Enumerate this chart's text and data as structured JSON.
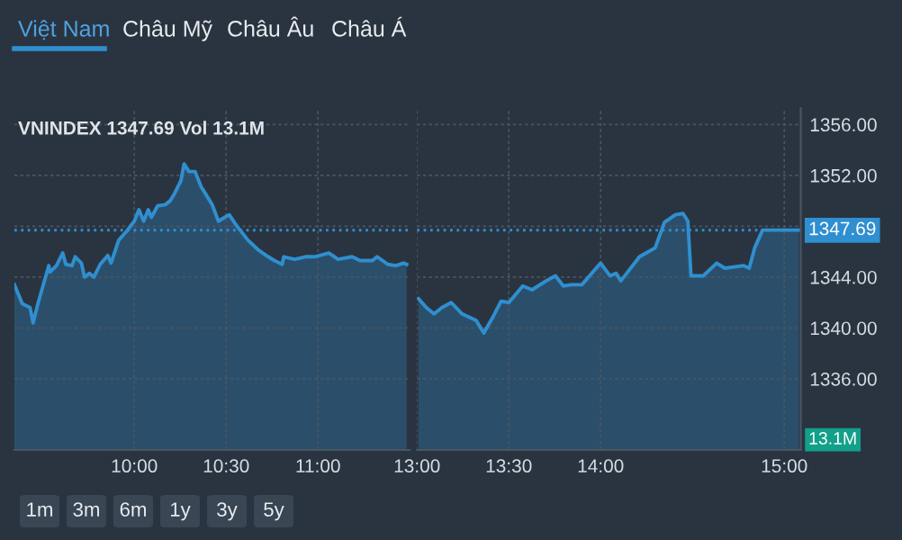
{
  "chart_data": [
    {
      "type": "area",
      "title": "VNINDEX 1347.69 Vol 13.1M",
      "x": [
        9.347,
        9.39,
        9.432,
        9.449,
        9.475,
        9.534,
        9.542,
        9.576,
        9.61,
        9.627,
        9.661,
        9.678,
        9.712,
        9.729,
        9.754,
        9.78,
        9.814,
        9.856,
        9.873,
        9.915,
        9.958,
        10.0,
        10.025,
        10.051,
        10.076,
        10.093,
        10.127,
        10.169,
        10.195,
        10.22,
        10.254,
        10.271,
        10.297,
        10.331,
        10.364,
        10.424,
        10.458,
        10.492,
        10.517,
        10.559,
        10.619,
        10.678,
        10.729,
        10.763,
        10.805,
        10.814,
        10.873,
        10.932,
        10.983,
        11.059,
        11.11,
        11.186,
        11.229,
        11.297,
        11.322,
        11.381,
        11.424,
        11.466,
        11.483
      ],
      "series": [
        {
          "color": "#2f8fd0",
          "values": [
            1343.4,
            1341.9,
            1341.6,
            1340.4,
            1341.9,
            1344.9,
            1344.4,
            1344.9,
            1345.9,
            1345.0,
            1344.9,
            1345.6,
            1345.1,
            1344.0,
            1344.3,
            1344.0,
            1345.0,
            1345.7,
            1345.1,
            1346.9,
            1347.6,
            1348.4,
            1349.3,
            1348.4,
            1349.3,
            1348.7,
            1349.6,
            1349.7,
            1350.0,
            1350.6,
            1351.6,
            1352.9,
            1352.3,
            1352.3,
            1351.1,
            1349.7,
            1348.4,
            1348.7,
            1348.9,
            1348.0,
            1346.9,
            1346.1,
            1345.6,
            1345.3,
            1345.0,
            1345.6,
            1345.4,
            1345.6,
            1345.6,
            1345.9,
            1345.4,
            1345.6,
            1345.3,
            1345.3,
            1345.6,
            1345.0,
            1344.9,
            1345.1,
            1345.0
          ]
        }
      ],
      "xlim": [
        9.347,
        11.5
      ],
      "xticks": [
        {
          "value": 10.0,
          "label": "10:00"
        },
        {
          "value": 10.5,
          "label": "10:30"
        },
        {
          "value": 11.0,
          "label": "11:00"
        }
      ],
      "ylim": [
        1330.4,
        1357.3
      ],
      "yticks": [
        1336,
        1340,
        1344,
        1348,
        1352,
        1356
      ],
      "tick_labels": "x",
      "ref_lines": [
        {
          "axis": "y",
          "value": 1347.69,
          "color": "#2f8fd0",
          "line_style": "dotted"
        }
      ],
      "grid": true,
      "annotations": [
        "Việt Nam",
        "Châu Mỹ",
        "Châu Âu",
        "Châu Á",
        "1m",
        "3m",
        "6m",
        "1y",
        "3y",
        "5y"
      ]
    },
    {
      "type": "area",
      "x": [
        13.008,
        13.051,
        13.093,
        13.136,
        13.186,
        13.246,
        13.322,
        13.364,
        13.415,
        13.458,
        13.5,
        13.576,
        13.627,
        13.703,
        13.754,
        13.797,
        13.839,
        13.898,
        14.0,
        14.051,
        14.085,
        14.11,
        14.212,
        14.297,
        14.347,
        14.407,
        14.449,
        14.475,
        14.492,
        14.559,
        14.632,
        14.677,
        14.78,
        14.809,
        14.839,
        14.882,
        15.08
      ],
      "series": [
        {
          "color": "#2f8fd0",
          "values": [
            1342.3,
            1341.6,
            1341.1,
            1341.6,
            1342.0,
            1341.1,
            1340.6,
            1339.6,
            1340.9,
            1342.1,
            1342.0,
            1343.3,
            1343.0,
            1343.7,
            1344.1,
            1343.3,
            1343.4,
            1343.4,
            1345.1,
            1344.1,
            1344.3,
            1343.7,
            1345.6,
            1346.3,
            1348.3,
            1348.9,
            1349.0,
            1348.4,
            1344.1,
            1344.1,
            1345.1,
            1344.7,
            1344.9,
            1344.7,
            1346.3,
            1347.7,
            1347.7
          ]
        }
      ],
      "xlim": [
        13.0,
        15.09
      ],
      "xticks": [
        {
          "value": 13.0,
          "label": "13:00"
        },
        {
          "value": 13.5,
          "label": "13:30"
        },
        {
          "value": 14.0,
          "label": "14:00"
        },
        {
          "value": 15.0,
          "label": "15:00"
        }
      ],
      "ylim": [
        1330.4,
        1357.3
      ],
      "yticks": [
        {
          "value": 1336,
          "label": "1336.00"
        },
        {
          "value": 1340,
          "label": "1340.00"
        },
        {
          "value": 1344,
          "label": "1344.00"
        },
        {
          "value": 1348,
          "label": null
        },
        {
          "value": 1352,
          "label": "1352.00"
        },
        {
          "value": 1356,
          "label": "1356.00"
        }
      ],
      "ref_lines": [
        {
          "axis": "y",
          "value": 1347.69,
          "label": "1347.69",
          "color": "#2f8fd0",
          "line_style": "dotted"
        }
      ],
      "grid": true,
      "annotations": [
        "13.1M"
      ]
    }
  ]
}
